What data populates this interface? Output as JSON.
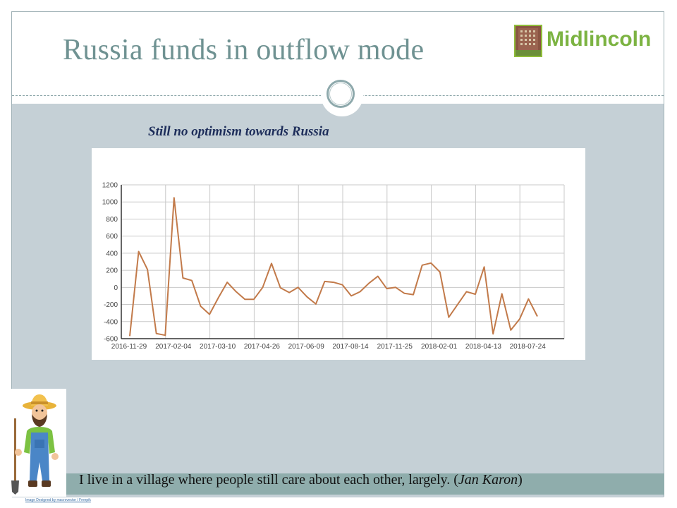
{
  "slide": {
    "title": "Russia funds in outflow mode",
    "logo_text": "Midlincoln",
    "subtitle": "Still no optimism towards Russia",
    "quote_text": "I live in a village where people still care about each other, largely. (",
    "quote_author": "Jan Karon",
    "quote_close": ")",
    "credit": "Image Designed by macrovector / Freepik"
  },
  "chart_data": {
    "type": "line",
    "title": "",
    "xlabel": "",
    "ylabel": "",
    "ylim": [
      -600,
      1200
    ],
    "yticks": [
      -600,
      -400,
      -200,
      0,
      200,
      400,
      600,
      800,
      1000,
      1200
    ],
    "xtick_labels": [
      "2016-11-29",
      "2017-02-04",
      "2017-03-10",
      "2017-04-26",
      "2017-06-09",
      "2017-08-14",
      "2017-11-25",
      "2018-02-01",
      "2018-04-13",
      "2018-07-24"
    ],
    "grid": true,
    "line_color": "#c27a4a",
    "series": [
      {
        "values": [
          -570,
          420,
          210,
          -540,
          -560,
          1050,
          110,
          80,
          -220,
          -315,
          -120,
          60,
          -50,
          -140,
          -140,
          0,
          280,
          -5,
          -60,
          0,
          -110,
          -195,
          70,
          60,
          30,
          -100,
          -50,
          50,
          130,
          -15,
          0,
          -70,
          -85,
          260,
          285,
          180,
          -350,
          -200,
          -50,
          -80,
          240,
          -545,
          -75,
          -500,
          -370,
          -135,
          -340
        ]
      }
    ]
  }
}
